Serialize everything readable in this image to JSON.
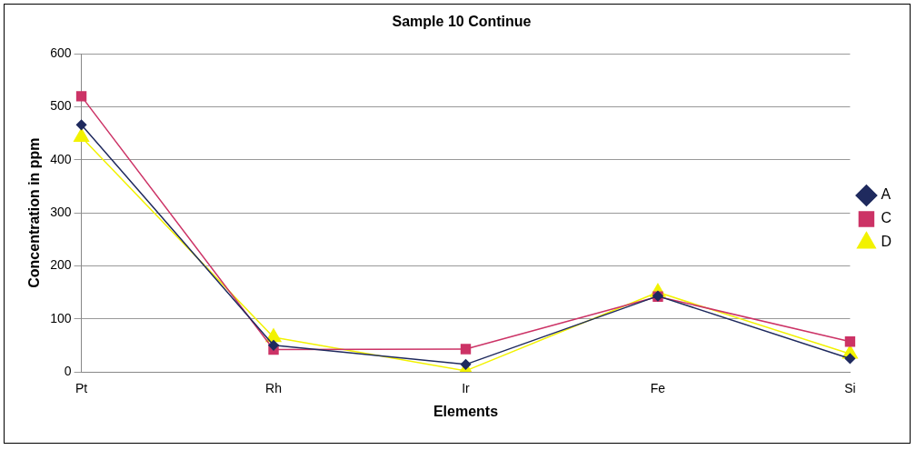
{
  "chart_data": {
    "type": "line",
    "title": "Sample 10 Continue",
    "xlabel": "Elements",
    "ylabel": "Concentration in ppm",
    "categories": [
      "Pt",
      "Rh",
      "Ir",
      "Fe",
      "Si"
    ],
    "series": [
      {
        "name": "A",
        "color": "#1f2a5e",
        "marker": "diamond",
        "values": [
          466,
          50,
          14,
          143,
          25
        ]
      },
      {
        "name": "C",
        "color": "#cc3366",
        "marker": "square",
        "values": [
          520,
          42,
          43,
          142,
          57
        ]
      },
      {
        "name": "D",
        "color": "#f2f200",
        "marker": "triangle",
        "values": [
          443,
          65,
          2,
          150,
          34
        ]
      }
    ],
    "ylim": [
      0,
      600
    ],
    "yticks": [
      0,
      100,
      200,
      300,
      400,
      500,
      600
    ],
    "grid": "y",
    "legend": "right",
    "line_style": "solid"
  }
}
